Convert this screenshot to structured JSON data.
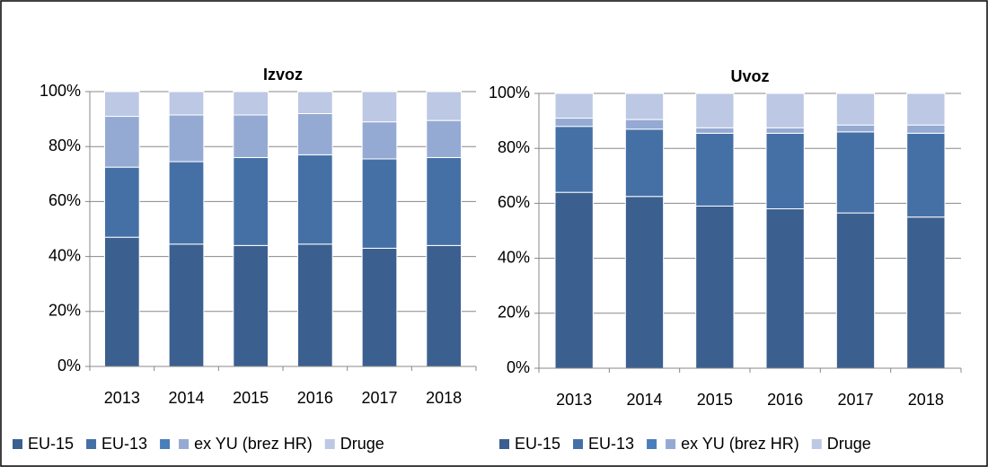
{
  "chart_data": [
    {
      "type": "stacked_bar",
      "title": "Izvoz",
      "categories": [
        "2013",
        "2014",
        "2015",
        "2016",
        "2017",
        "2018"
      ],
      "series": [
        {
          "name": "EU-15",
          "color": "#3b5f8f",
          "values": [
            47,
            44.5,
            44,
            44.5,
            43,
            44
          ]
        },
        {
          "name": "EU-13",
          "color": "#4570a6",
          "values": [
            25.5,
            30,
            32,
            32.5,
            32.5,
            32
          ]
        },
        {
          "name": null,
          "color": "#4a7ebb",
          "values": [
            null,
            null,
            null,
            null,
            null,
            null
          ]
        },
        {
          "name": "ex YU (brez HR)",
          "color": "#95aad3",
          "values": [
            18.5,
            17,
            15.5,
            15,
            13.5,
            13.5
          ]
        },
        {
          "name": "Druge",
          "color": "#bcc8e4",
          "values": [
            9,
            8.5,
            8.5,
            8,
            11,
            10.5
          ]
        }
      ],
      "ylim": [
        0,
        100
      ],
      "yticks": [
        {
          "value": 0,
          "label": "0%"
        },
        {
          "value": 20,
          "label": "20%"
        },
        {
          "value": 40,
          "label": "40%"
        },
        {
          "value": 60,
          "label": "60%"
        },
        {
          "value": 80,
          "label": "80%"
        },
        {
          "value": 100,
          "label": "100%"
        }
      ],
      "grid": true,
      "legend": "bottom"
    },
    {
      "type": "stacked_bar",
      "title": "Uvoz",
      "categories": [
        "2013",
        "2014",
        "2015",
        "2016",
        "2017",
        "2018"
      ],
      "series": [
        {
          "name": "EU-15",
          "color": "#3b5f8f",
          "values": [
            64,
            62.5,
            59,
            58,
            56.5,
            55
          ]
        },
        {
          "name": "EU-13",
          "color": "#4570a6",
          "values": [
            24,
            24.5,
            26.5,
            27.5,
            29.5,
            30.5
          ]
        },
        {
          "name": null,
          "color": "#4a7ebb",
          "values": [
            null,
            null,
            null,
            null,
            null,
            null
          ]
        },
        {
          "name": "ex YU (brez HR)",
          "color": "#95aad3",
          "values": [
            3,
            3.5,
            2,
            2,
            2.5,
            3
          ]
        },
        {
          "name": "Druge",
          "color": "#bcc8e4",
          "values": [
            9,
            9.5,
            12.5,
            12.5,
            11.5,
            11.5
          ]
        }
      ],
      "ylim": [
        0,
        100
      ],
      "yticks": [
        {
          "value": 0,
          "label": "0%"
        },
        {
          "value": 20,
          "label": "20%"
        },
        {
          "value": 40,
          "label": "40%"
        },
        {
          "value": 60,
          "label": "60%"
        },
        {
          "value": 80,
          "label": "80%"
        },
        {
          "value": 100,
          "label": "100%"
        }
      ],
      "grid": true,
      "legend": "bottom"
    }
  ]
}
